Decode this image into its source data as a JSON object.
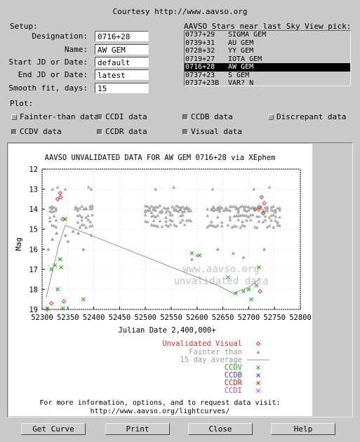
{
  "header": {
    "courtesy": "Courtesy http://www.aavso.org"
  },
  "setup": {
    "title": "Setup:",
    "designation_label": "Designation:",
    "designation_value": "0716+28",
    "name_label": "Name:",
    "name_value": "AW GEM",
    "start_label": "Start JD or Date:",
    "start_value": "default",
    "end_label": "End JD or Date:",
    "end_value": "latest",
    "smooth_label": "Smooth fit, days:",
    "smooth_value": "15"
  },
  "stars": {
    "title": "AAVSO Stars near last Sky View pick:",
    "items": [
      {
        "code": "0737+29",
        "name": "SIGMA GEM"
      },
      {
        "code": "0739+31",
        "name": "AU GEM"
      },
      {
        "code": "0728+32",
        "name": "YY GEM"
      },
      {
        "code": "0719+27",
        "name": "IOTA GEM"
      },
      {
        "code": "0716+28",
        "name": "AW GEM",
        "selected": true
      },
      {
        "code": "0737+23",
        "name": "S GEM"
      },
      {
        "code": "0737+23B",
        "name": "VAR? N"
      }
    ]
  },
  "plot_options": {
    "title": "Plot:",
    "fainter": {
      "label": "Fainter-than data",
      "checked": false
    },
    "ccdi": {
      "label": "CCDI data",
      "checked": true
    },
    "ccdb": {
      "label": "CCDB data",
      "checked": true
    },
    "discrepant": {
      "label": "Discrepant data",
      "checked": false
    },
    "ccdv": {
      "label": "CCDV data",
      "checked": true
    },
    "ccdr": {
      "label": "CCDR data",
      "checked": true
    },
    "visual": {
      "label": "Visual data",
      "checked": true
    }
  },
  "chart_data": {
    "type": "scatter",
    "title": "AAVSO UNVALIDATED DATA FOR AW GEM 0716+28 via XEphem",
    "xlabel": "Julian Date 2,400,000+",
    "ylabel": "Mag",
    "xlim": [
      52300,
      52800
    ],
    "ylim": [
      19,
      12
    ],
    "x_ticks": [
      52300,
      52350,
      52400,
      52450,
      52500,
      52550,
      52600,
      52650,
      52700,
      52750,
      52800
    ],
    "y_ticks": [
      12,
      13,
      14,
      15,
      16,
      17,
      18,
      19
    ],
    "watermark": [
      "www.aavso.org",
      "unvalidated data"
    ],
    "grid": true,
    "series": [
      {
        "name": "Unvalidated Visual",
        "color": "#e03030",
        "marker": "diamond",
        "points": [
          [
            52310,
            19.0
          ],
          [
            52318,
            18.7
          ],
          [
            52330,
            13.5
          ],
          [
            52335,
            13.2
          ],
          [
            52336,
            13.4
          ],
          [
            52340,
            14.5
          ],
          [
            52342,
            18.6
          ],
          [
            52712,
            14.0
          ],
          [
            52720,
            13.9
          ],
          [
            52722,
            18.1
          ],
          [
            52725,
            13.4
          ],
          [
            52730,
            13.7
          ],
          [
            52728,
            14.2
          ]
        ]
      },
      {
        "name": "Fainter than",
        "color": "#999999",
        "marker": "triangle",
        "points": [
          [
            52312,
            16.0
          ],
          [
            52320,
            15.5
          ],
          [
            52328,
            15.2
          ],
          [
            52345,
            15.3
          ],
          [
            52350,
            15.6
          ],
          [
            52360,
            15.1
          ],
          [
            52370,
            15.2
          ],
          [
            52380,
            16.0
          ],
          [
            52395,
            15.3
          ],
          [
            52590,
            16.5
          ],
          [
            52600,
            16.3
          ],
          [
            52640,
            16.0
          ],
          [
            52670,
            16.2
          ],
          [
            52690,
            16.4
          ],
          [
            52730,
            16.0
          ]
        ]
      },
      {
        "name": "15 day average",
        "color": "#777777",
        "marker": "line",
        "points": [
          [
            52308,
            18.4
          ],
          [
            52332,
            15.8
          ],
          [
            52345,
            14.8
          ],
          [
            52640,
            17.8
          ],
          [
            52670,
            18.2
          ],
          [
            52700,
            17.9
          ],
          [
            52720,
            17.5
          ]
        ]
      },
      {
        "name": "CCDV",
        "color": "#22aa22",
        "marker": "x",
        "points": [
          [
            52310,
            18.95
          ],
          [
            52318,
            17.0
          ],
          [
            52325,
            16.8
          ],
          [
            52330,
            18.0
          ],
          [
            52335,
            16.5
          ],
          [
            52337,
            16.9
          ],
          [
            52340,
            18.95
          ],
          [
            52345,
            14.5
          ],
          [
            52380,
            18.5
          ],
          [
            52590,
            16.2
          ],
          [
            52605,
            16.3
          ],
          [
            52660,
            17.4
          ],
          [
            52675,
            18.2
          ],
          [
            52690,
            18.1
          ],
          [
            52700,
            18.0
          ],
          [
            52705,
            18.5
          ],
          [
            52715,
            17.8
          ],
          [
            52720,
            16.9
          ]
        ]
      },
      {
        "name": "CCDB",
        "color": "#4444cc",
        "marker": "x",
        "points": []
      },
      {
        "name": "CCDR",
        "color": "#cc2222",
        "marker": "x",
        "points": []
      },
      {
        "name": "CCDI",
        "color": "#cc44cc",
        "marker": "x",
        "points": []
      }
    ],
    "legend": [
      {
        "label": "Unvalidated Visual",
        "color": "#e03030",
        "marker": "diamond"
      },
      {
        "label": "Fainter than",
        "color": "#999999",
        "marker": "triangle"
      },
      {
        "label": "15 day average",
        "color": "#999999",
        "marker": "line"
      },
      {
        "label": "CCDV",
        "color": "#22aa22",
        "marker": "x"
      },
      {
        "label": "CCDB",
        "color": "#4444cc",
        "marker": "x"
      },
      {
        "label": "CCDR",
        "color": "#cc2222",
        "marker": "x"
      },
      {
        "label": "CCDI",
        "color": "#cc44cc",
        "marker": "x"
      }
    ],
    "footer": [
      "For more information, options, and to request data visit:",
      "http://www.aavso.org/lightcurves/"
    ]
  },
  "buttons": {
    "get_curve": "Get Curve",
    "print": "Print",
    "close": "Close",
    "help": "Help"
  }
}
